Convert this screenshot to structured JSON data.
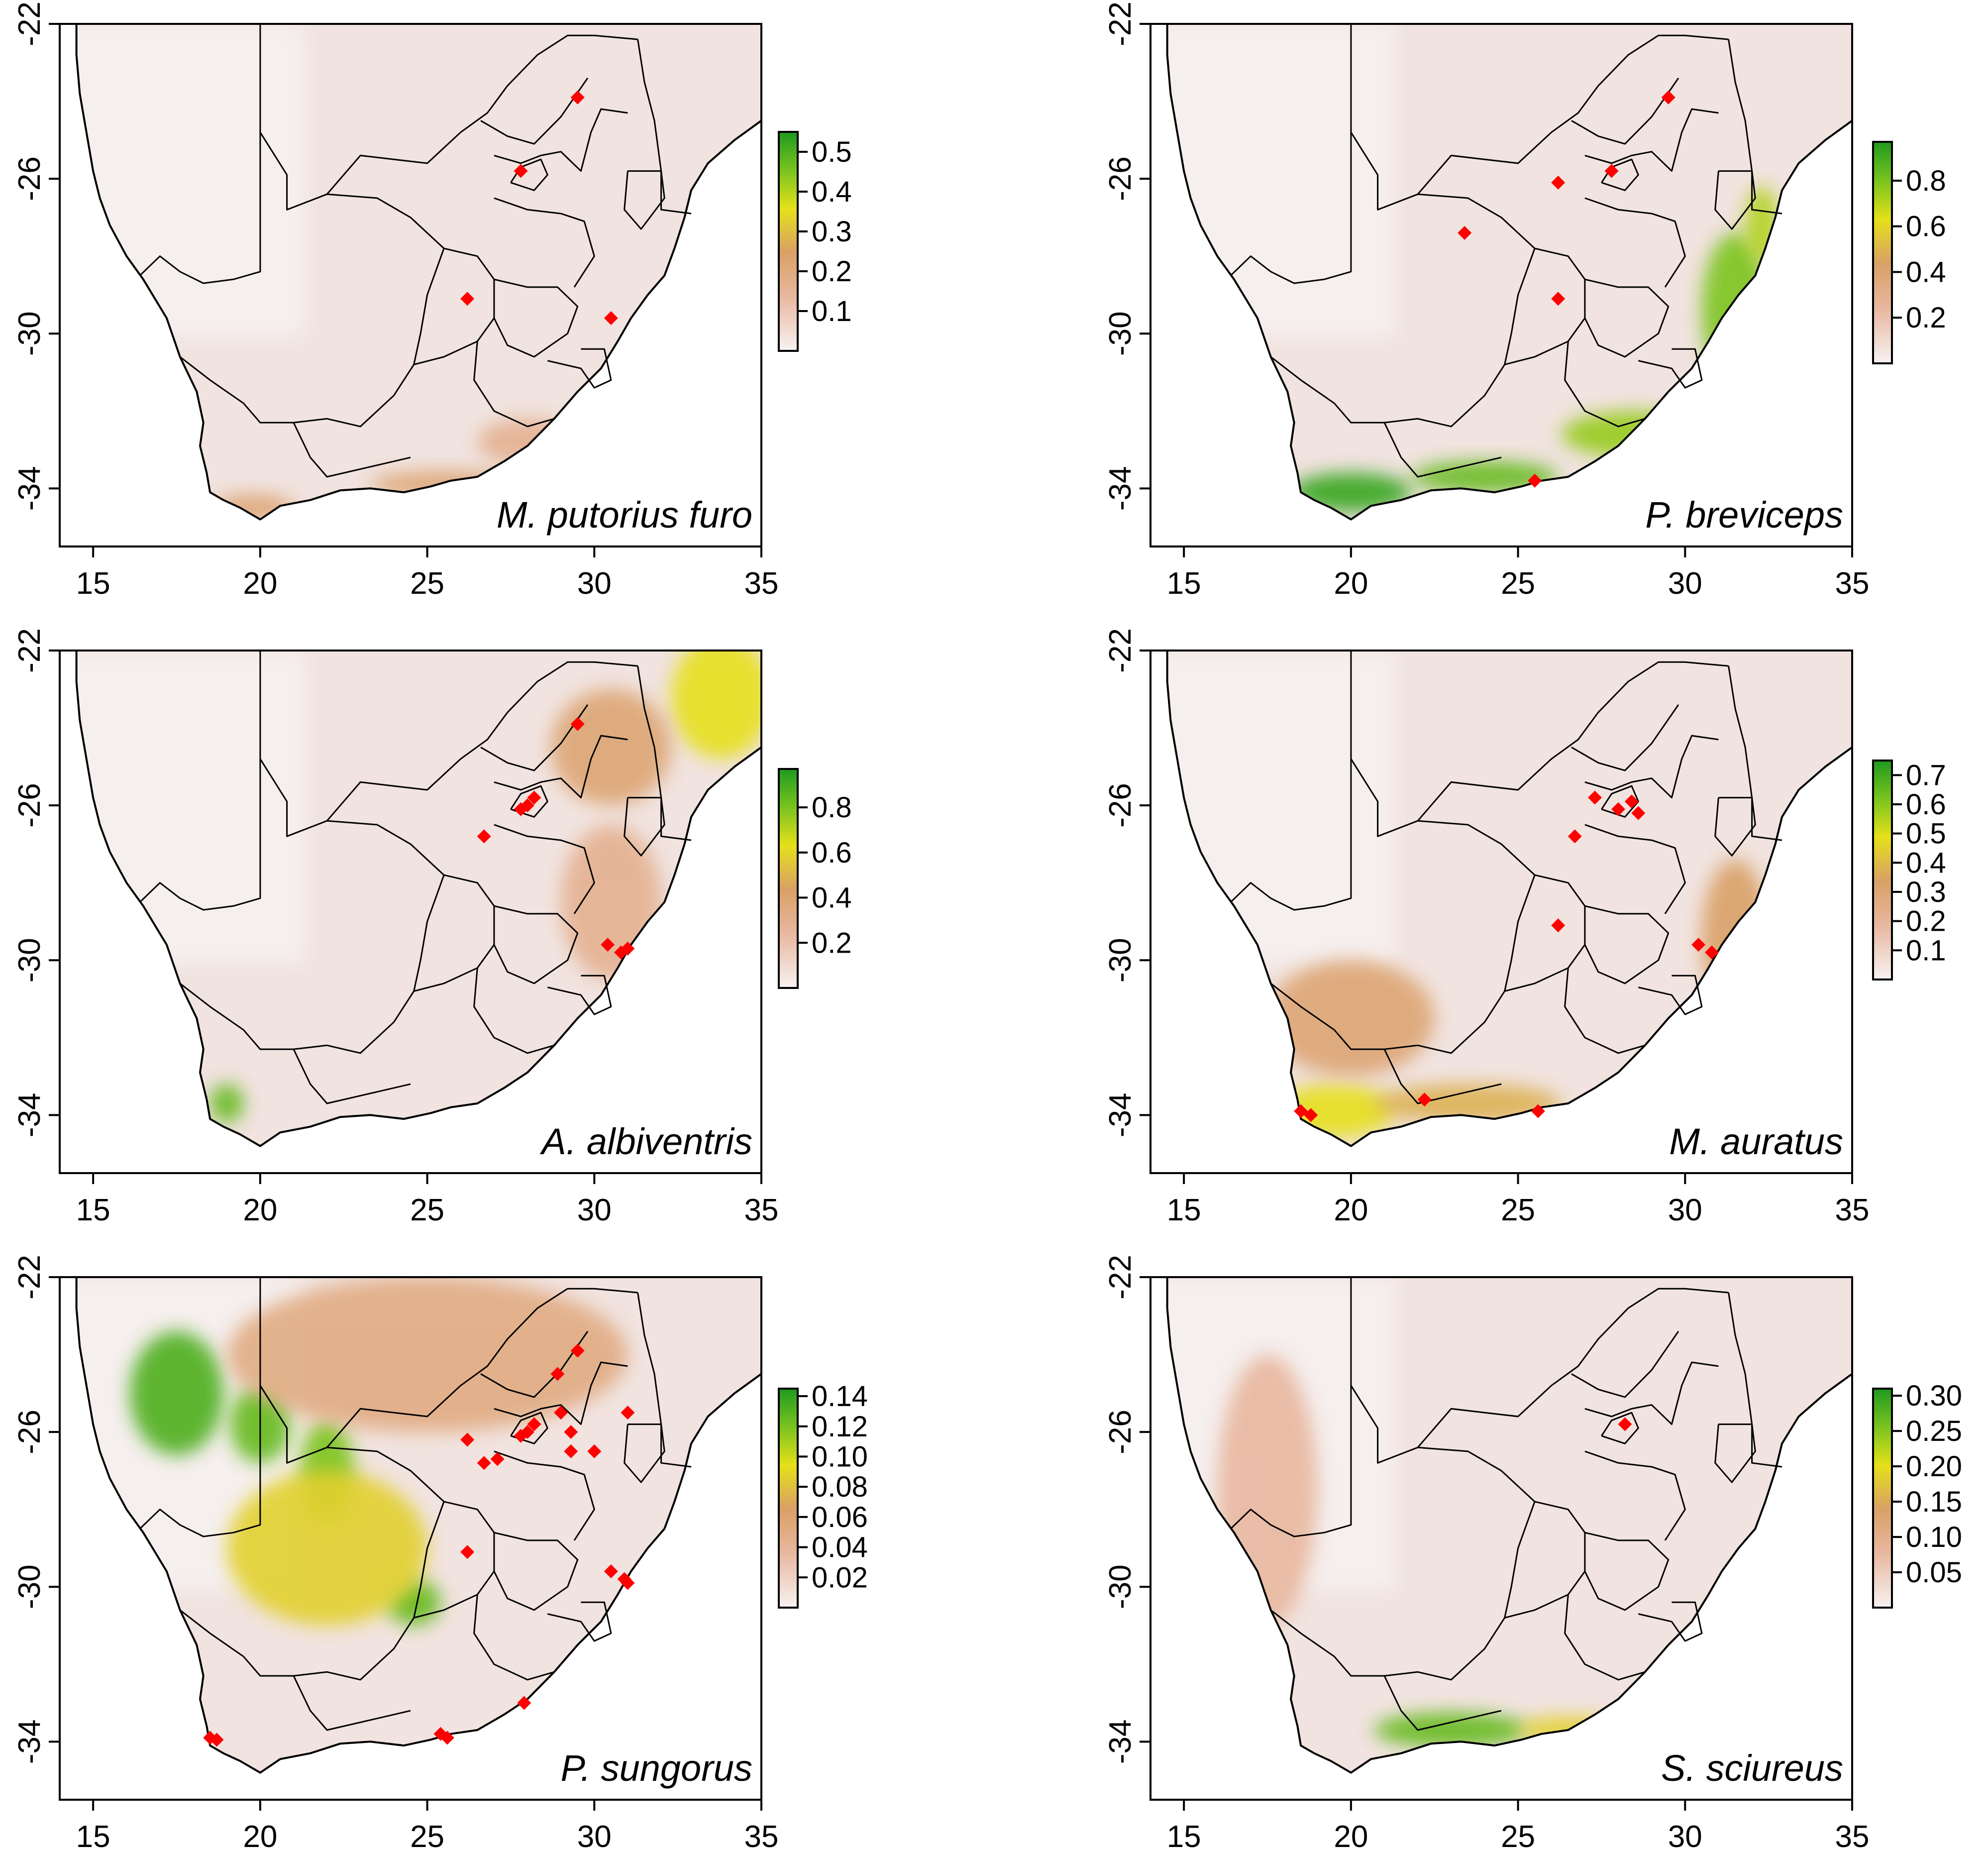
{
  "axes": {
    "x_ticks": [
      "15",
      "20",
      "25",
      "30",
      "35"
    ],
    "y_ticks": [
      "-22",
      "-26",
      "-30",
      "-34"
    ],
    "xlim": [
      14,
      35
    ],
    "ylim": [
      -35.5,
      -22
    ]
  },
  "colors": {
    "low": "#f4ecea",
    "mid": "#e8b79f",
    "tan": "#d9a066",
    "yellow": "#e5e01a",
    "high": "#1f9a1f",
    "point": "#ff0000"
  },
  "panels": [
    {
      "species": "M. putorius furo",
      "legend_ticks": [
        "0.5",
        "0.4",
        "0.3",
        "0.2",
        "0.1"
      ],
      "legend_max": 0.55,
      "legend_min": 0.0,
      "legend_values": [
        0.5,
        0.4,
        0.3,
        0.2,
        0.1
      ],
      "hotspots": [
        {
          "lon": 19.8,
          "lat": -34.5,
          "intensity": 0.35,
          "rlon": 1.2,
          "rlat": 0.35
        },
        {
          "lon": 25.5,
          "lat": -33.9,
          "intensity": 0.35,
          "rlon": 2.2,
          "rlat": 0.35
        },
        {
          "lon": 28.0,
          "lat": -32.8,
          "intensity": 0.25,
          "rlon": 1.5,
          "rlat": 0.6
        }
      ],
      "points": [
        {
          "lon": 29.5,
          "lat": -23.9
        },
        {
          "lon": 27.8,
          "lat": -25.8
        },
        {
          "lon": 26.2,
          "lat": -29.1
        },
        {
          "lon": 30.5,
          "lat": -29.6
        }
      ]
    },
    {
      "species": "P. breviceps",
      "legend_ticks": [
        "0.8",
        "0.6",
        "0.4",
        "0.2"
      ],
      "legend_max": 0.97,
      "legend_min": 0.0,
      "legend_values": [
        0.8,
        0.6,
        0.4,
        0.2
      ],
      "hotspots": [
        {
          "lon": 20.0,
          "lat": -34.1,
          "intensity": 0.95,
          "rlon": 1.8,
          "rlat": 0.5
        },
        {
          "lon": 24.0,
          "lat": -33.7,
          "intensity": 0.85,
          "rlon": 2.2,
          "rlat": 0.4
        },
        {
          "lon": 28.5,
          "lat": -32.6,
          "intensity": 0.75,
          "rlon": 2.2,
          "rlat": 0.6
        },
        {
          "lon": 31.5,
          "lat": -29.4,
          "intensity": 0.8,
          "rlon": 1.0,
          "rlat": 2.0
        },
        {
          "lon": 32.3,
          "lat": -27.2,
          "intensity": 0.7,
          "rlon": 0.5,
          "rlat": 1.0
        }
      ],
      "points": [
        {
          "lon": 29.5,
          "lat": -23.9
        },
        {
          "lon": 26.2,
          "lat": -26.1
        },
        {
          "lon": 27.8,
          "lat": -25.8
        },
        {
          "lon": 23.4,
          "lat": -27.4
        },
        {
          "lon": 26.2,
          "lat": -29.1
        },
        {
          "lon": 25.5,
          "lat": -33.8
        }
      ]
    },
    {
      "species": "A. albiventris",
      "legend_ticks": [
        "0.8",
        "0.6",
        "0.4",
        "0.2"
      ],
      "legend_max": 0.97,
      "legend_min": 0.0,
      "legend_values": [
        0.8,
        0.6,
        0.4,
        0.2
      ],
      "hotspots": [
        {
          "lon": 19.0,
          "lat": -33.7,
          "intensity": 0.85,
          "rlon": 0.5,
          "rlat": 0.5
        },
        {
          "lon": 33.8,
          "lat": -23.2,
          "intensity": 0.6,
          "rlon": 1.5,
          "rlat": 1.6
        },
        {
          "lon": 30.5,
          "lat": -24.5,
          "intensity": 0.35,
          "rlon": 1.8,
          "rlat": 1.5
        },
        {
          "lon": 30.5,
          "lat": -28.5,
          "intensity": 0.25,
          "rlon": 1.5,
          "rlat": 2.0
        }
      ],
      "points": [
        {
          "lon": 29.5,
          "lat": -23.9
        },
        {
          "lon": 28.2,
          "lat": -25.8
        },
        {
          "lon": 28.0,
          "lat": -26.0
        },
        {
          "lon": 27.8,
          "lat": -26.1
        },
        {
          "lon": 26.7,
          "lat": -26.8
        },
        {
          "lon": 30.4,
          "lat": -29.6
        },
        {
          "lon": 30.8,
          "lat": -29.8
        },
        {
          "lon": 31.0,
          "lat": -29.7
        }
      ]
    },
    {
      "species": "M. auratus",
      "legend_ticks": [
        "0.7",
        "0.6",
        "0.5",
        "0.4",
        "0.3",
        "0.2",
        "0.1"
      ],
      "legend_max": 0.75,
      "legend_min": 0.0,
      "legend_values": [
        0.7,
        0.6,
        0.5,
        0.4,
        0.3,
        0.2,
        0.1
      ],
      "hotspots": [
        {
          "lon": 19.5,
          "lat": -33.9,
          "intensity": 0.6,
          "rlon": 1.8,
          "rlat": 0.7
        },
        {
          "lon": 23.5,
          "lat": -33.7,
          "intensity": 0.45,
          "rlon": 2.8,
          "rlat": 0.5
        },
        {
          "lon": 20.0,
          "lat": -31.5,
          "intensity": 0.35,
          "rlon": 2.5,
          "rlat": 1.5
        },
        {
          "lon": 31.5,
          "lat": -29.4,
          "intensity": 0.4,
          "rlon": 1.0,
          "rlat": 2.0
        }
      ],
      "points": [
        {
          "lon": 27.3,
          "lat": -25.8
        },
        {
          "lon": 28.0,
          "lat": -26.1
        },
        {
          "lon": 28.4,
          "lat": -25.9
        },
        {
          "lon": 28.6,
          "lat": -26.2
        },
        {
          "lon": 26.7,
          "lat": -26.8
        },
        {
          "lon": 26.2,
          "lat": -29.1
        },
        {
          "lon": 30.4,
          "lat": -29.6
        },
        {
          "lon": 30.8,
          "lat": -29.8
        },
        {
          "lon": 22.2,
          "lat": -33.6
        },
        {
          "lon": 25.6,
          "lat": -33.9
        },
        {
          "lon": 18.5,
          "lat": -33.9
        },
        {
          "lon": 18.8,
          "lat": -34.0
        }
      ]
    },
    {
      "species": "P. sungorus",
      "legend_ticks": [
        "0.14",
        "0.12",
        "0.10",
        "0.08",
        "0.06",
        "0.04",
        "0.02"
      ],
      "legend_max": 0.145,
      "legend_min": 0.0,
      "legend_values": [
        0.14,
        0.12,
        0.1,
        0.08,
        0.06,
        0.04,
        0.02
      ],
      "hotspots": [
        {
          "lon": 17.5,
          "lat": -25.0,
          "intensity": 0.9,
          "rlon": 1.4,
          "rlat": 1.6
        },
        {
          "lon": 20.0,
          "lat": -25.8,
          "intensity": 0.85,
          "rlon": 0.9,
          "rlat": 1.0
        },
        {
          "lon": 22.0,
          "lat": -27.0,
          "intensity": 0.8,
          "rlon": 0.8,
          "rlat": 1.3
        },
        {
          "lon": 24.6,
          "lat": -30.4,
          "intensity": 0.85,
          "rlon": 0.8,
          "rlat": 0.6
        },
        {
          "lon": 22.0,
          "lat": -29.0,
          "intensity": 0.55,
          "rlon": 3.0,
          "rlat": 2.0
        },
        {
          "lon": 25.0,
          "lat": -24.0,
          "intensity": 0.3,
          "rlon": 6.0,
          "rlat": 2.0
        }
      ],
      "points": [
        {
          "lon": 29.5,
          "lat": -23.9
        },
        {
          "lon": 28.9,
          "lat": -24.5
        },
        {
          "lon": 29.0,
          "lat": -25.5
        },
        {
          "lon": 31.0,
          "lat": -25.5
        },
        {
          "lon": 28.0,
          "lat": -26.0
        },
        {
          "lon": 28.2,
          "lat": -25.8
        },
        {
          "lon": 27.8,
          "lat": -26.1
        },
        {
          "lon": 29.3,
          "lat": -26.0
        },
        {
          "lon": 26.2,
          "lat": -26.2
        },
        {
          "lon": 26.7,
          "lat": -26.8
        },
        {
          "lon": 27.1,
          "lat": -26.7
        },
        {
          "lon": 29.3,
          "lat": -26.5
        },
        {
          "lon": 30.0,
          "lat": -26.5
        },
        {
          "lon": 26.2,
          "lat": -29.1
        },
        {
          "lon": 30.5,
          "lat": -29.6
        },
        {
          "lon": 30.9,
          "lat": -29.8
        },
        {
          "lon": 31.0,
          "lat": -29.9
        },
        {
          "lon": 27.9,
          "lat": -33.0
        },
        {
          "lon": 25.4,
          "lat": -33.8
        },
        {
          "lon": 25.6,
          "lat": -33.9
        },
        {
          "lon": 18.5,
          "lat": -33.9
        },
        {
          "lon": 18.7,
          "lat": -33.95
        }
      ]
    },
    {
      "species": "S. sciureus",
      "legend_ticks": [
        "0.30",
        "0.25",
        "0.20",
        "0.15",
        "0.10",
        "0.05"
      ],
      "legend_max": 0.31,
      "legend_min": 0.0,
      "legend_values": [
        0.3,
        0.25,
        0.2,
        0.15,
        0.1,
        0.05
      ],
      "hotspots": [
        {
          "lon": 23.0,
          "lat": -33.7,
          "intensity": 0.85,
          "rlon": 2.3,
          "rlat": 0.45
        },
        {
          "lon": 26.5,
          "lat": -33.7,
          "intensity": 0.55,
          "rlon": 1.5,
          "rlat": 0.35
        },
        {
          "lon": 17.5,
          "lat": -27.5,
          "intensity": 0.2,
          "rlon": 1.5,
          "rlat": 3.5
        }
      ],
      "points": [
        {
          "lon": 28.2,
          "lat": -25.8
        }
      ]
    }
  ]
}
